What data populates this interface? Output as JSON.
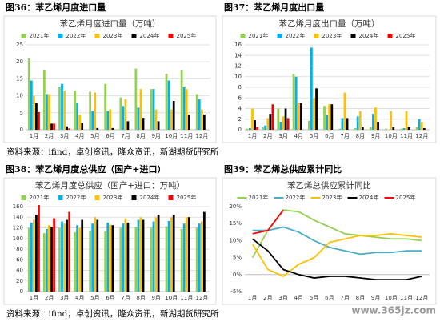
{
  "chart_data": [
    {
      "type": "bar",
      "caption": "图36：苯乙烯月度进口量",
      "title": "苯乙烯月度进口量（万吨）",
      "categories": [
        "1月",
        "2月",
        "3月",
        "4月",
        "5月",
        "6月",
        "7月",
        "8月",
        "9月",
        "10月",
        "11月",
        "12月"
      ],
      "ylim": [
        0,
        25
      ],
      "yticks": [
        0,
        5,
        10,
        15,
        20,
        25
      ],
      "grid": true,
      "series": [
        {
          "name": "2021年",
          "color": "#92d050",
          "values": [
            21,
            17.5,
            12.5,
            11.5,
            11.2,
            13.5,
            9.5,
            18,
            12,
            16.5,
            17.5,
            10.5
          ]
        },
        {
          "name": "2022年",
          "color": "#00b0f0",
          "values": [
            14.5,
            10.5,
            13.5,
            8,
            5.5,
            5.5,
            7,
            6.5,
            12,
            14.5,
            12.5,
            9
          ]
        },
        {
          "name": "2023年",
          "color": "#ffc000",
          "values": [
            10,
            10.5,
            11.5,
            4.5,
            11,
            6,
            9,
            12,
            6,
            6,
            12,
            6
          ]
        },
        {
          "name": "2024年",
          "color": "#000000",
          "values": [
            7.8,
            1.8,
            1,
            2,
            0.5,
            0.5,
            2.5,
            3.5,
            2.5,
            8.5,
            4.5,
            4.5
          ]
        },
        {
          "name": "2025年",
          "color": "#ff0000",
          "values": [
            5.2,
            1.8,
            0.4,
            null,
            null,
            null,
            null,
            null,
            null,
            null,
            null,
            null
          ]
        }
      ]
    },
    {
      "type": "bar",
      "caption": "图37：苯乙烯月度出口量",
      "title": "苯乙烯月度出口量（万吨）",
      "categories": [
        "1月",
        "2月",
        "3月",
        "4月",
        "5月",
        "6月",
        "7月",
        "8月",
        "9月",
        "10月",
        "11月",
        "12月"
      ],
      "ylim": [
        0,
        16
      ],
      "yticks": [
        0,
        2,
        4,
        6,
        8,
        10,
        12,
        14,
        16
      ],
      "grid": true,
      "series": [
        {
          "name": "2021年",
          "color": "#92d050",
          "values": [
            0.2,
            0.5,
            4,
            10.5,
            1.7,
            4.5,
            0.2,
            0.3,
            0.5,
            0.2,
            0.2,
            0.5
          ]
        },
        {
          "name": "2022年",
          "color": "#00b0f0",
          "values": [
            0.3,
            0.8,
            1.5,
            10,
            15.5,
            2.8,
            2.2,
            2.5,
            3,
            0,
            0.3,
            2
          ]
        },
        {
          "name": "2023年",
          "color": "#ffc000",
          "values": [
            4,
            2.2,
            2.5,
            5,
            6,
            4.8,
            7,
            3.5,
            4.2,
            3.5,
            3.5,
            1.5
          ]
        },
        {
          "name": "2024年",
          "color": "#000000",
          "values": [
            1.8,
            3,
            4,
            5,
            7.8,
            4.8,
            2.2,
            0.5,
            1.5,
            0.5,
            0.5,
            0.3
          ]
        },
        {
          "name": "2025年",
          "color": "#ff0000",
          "values": [
            0.5,
            4.8,
            2.2,
            null,
            null,
            null,
            null,
            null,
            null,
            null,
            null,
            null
          ]
        }
      ]
    },
    {
      "type": "bar",
      "caption": "图38：苯乙烯月度总供应（国产+进口）",
      "title": "苯乙烯月度总供应（国产+进口：万吨）",
      "categories": [
        "1月",
        "2月",
        "3月",
        "4月",
        "5月",
        "6月",
        "7月",
        "8月",
        "9月",
        "10月",
        "11月",
        "12月"
      ],
      "ylim": [
        0,
        160
      ],
      "yticks": [
        0,
        20,
        40,
        60,
        80,
        100,
        120,
        140,
        160
      ],
      "grid": true,
      "series": [
        {
          "name": "2021年",
          "color": "#92d050",
          "values": [
            120,
            110,
            120,
            112,
            115,
            113,
            120,
            122,
            120,
            123,
            118,
            120
          ]
        },
        {
          "name": "2022年",
          "color": "#00b0f0",
          "values": [
            130,
            118,
            132,
            125,
            128,
            130,
            128,
            135,
            132,
            133,
            128,
            128
          ]
        },
        {
          "name": "2023年",
          "color": "#ffc000",
          "values": [
            135,
            125,
            128,
            120,
            140,
            125,
            138,
            140,
            140,
            140,
            140,
            132
          ]
        },
        {
          "name": "2024年",
          "color": "#000000",
          "values": [
            145,
            122,
            135,
            135,
            135,
            125,
            130,
            135,
            145,
            145,
            140,
            150
          ]
        },
        {
          "name": "2025年",
          "color": "#ff0000",
          "values": [
            163,
            138,
            150,
            null,
            null,
            null,
            null,
            null,
            null,
            null,
            null,
            null
          ]
        }
      ]
    },
    {
      "type": "line",
      "caption": "图39：苯乙烯总供应累计同比",
      "title": "苯乙烯总供应累计同比",
      "categories": [
        "1月",
        "2月",
        "3月",
        "4月",
        "5月",
        "6月",
        "7月",
        "8月",
        "9月",
        "10月",
        "11月",
        "12月"
      ],
      "ylim": [
        -5,
        20
      ],
      "yticks": [
        {
          "value": -5,
          "label": "-5%"
        },
        {
          "value": 0,
          "label": "0%"
        },
        {
          "value": 5,
          "label": "5%"
        },
        {
          "value": 10,
          "label": "10%"
        },
        {
          "value": 15,
          "label": "15%"
        },
        {
          "value": 20,
          "label": "20%"
        }
      ],
      "grid": false,
      "series": [
        {
          "name": "2021年",
          "color": "#92d050",
          "values": [
            5,
            13,
            19,
            18.5,
            16,
            14,
            12,
            11.5,
            11,
            10.5,
            10.5,
            10
          ]
        },
        {
          "name": "2022年",
          "color": "#4bacc6",
          "values": [
            13,
            13,
            14,
            12.5,
            10,
            8,
            7,
            6,
            6.5,
            6.5,
            7,
            7
          ]
        },
        {
          "name": "2023年",
          "color": "#ffc000",
          "values": [
            9,
            1.5,
            -0.5,
            3,
            5,
            9.5,
            10.5,
            11.5,
            11.5,
            12,
            11.5,
            11
          ]
        },
        {
          "name": "2024年",
          "color": "#000000",
          "values": [
            10.5,
            7,
            1.5,
            0,
            -1,
            -0.5,
            -0.5,
            -1,
            -1.5,
            -1.5,
            -1.5,
            -0.5
          ]
        },
        {
          "name": "2025年",
          "color": "#ff0000",
          "values": [
            12,
            13,
            19,
            null,
            null,
            null,
            null,
            null,
            null,
            null,
            null,
            null
          ]
        }
      ]
    }
  ],
  "sources": [
    "资料来源：ifind，卓创资讯，隆众资讯，新湖期货研究所",
    "资料来源：ifind，卓创资讯，隆众资讯，新湖期货研究所"
  ],
  "watermark": "www.365jz.com"
}
